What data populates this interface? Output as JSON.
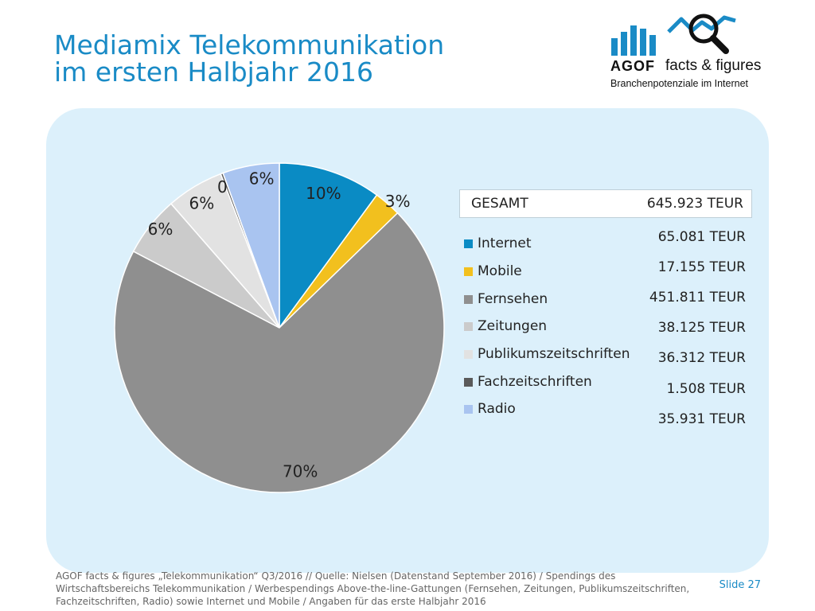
{
  "slide": {
    "title_line1": "Mediamix Telekommunikation",
    "title_line2": "im ersten Halbjahr 2016",
    "logo": {
      "brand": "AGOF",
      "tagline": "facts & figures",
      "subtitle": "Branchenpotenziale im Internet"
    },
    "footnote": "AGOF facts & figures „Telekommunikation“ Q3/2016 // Quelle: Nielsen (Datenstand September 2016) / Spendings des Wirtschaftsbereichs Telekommunikation / Werbespendings Above-the-line-Gattungen (Fernsehen, Zeitungen, Publikumszeitschriften, Fachzeitschriften, Radio) sowie Internet und Mobile / Angaben für das erste Halbjahr 2016",
    "slide_number": "Slide 27"
  },
  "colors": {
    "title": "#1a8bc6",
    "panel": "#dcf0fb"
  },
  "chart_data": {
    "type": "pie",
    "total_label": "GESAMT",
    "total_value": "645.923 TEUR",
    "categories": [
      "Internet",
      "Mobile",
      "Fernsehen",
      "Zeitungen",
      "Publikumszeitschriften",
      "Fachzeitschriften",
      "Radio"
    ],
    "values": [
      65081,
      17155,
      451811,
      38125,
      36312,
      1508,
      35931
    ],
    "value_labels": [
      "65.081 TEUR",
      "17.155 TEUR",
      "451.811 TEUR",
      "38.125 TEUR",
      "36.312 TEUR",
      "1.508 TEUR",
      "35.931 TEUR"
    ],
    "percent_labels": [
      "10%",
      "3%",
      "70%",
      "6%",
      "6%",
      "0%",
      "6%"
    ],
    "colors": [
      "#0a8bc4",
      "#f2c01e",
      "#8f8f8f",
      "#cbcbcb",
      "#e2e2e2",
      "#5a5a5a",
      "#a9c4f0"
    ],
    "legend_position": "right"
  }
}
